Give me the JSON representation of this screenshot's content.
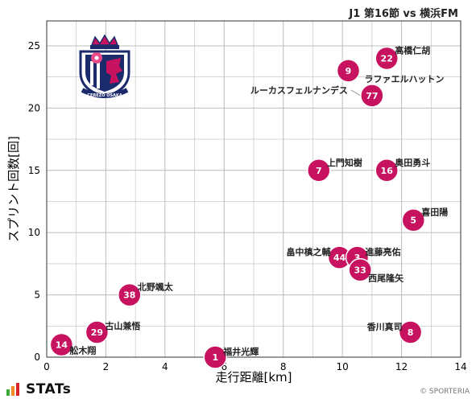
{
  "header": {
    "title": "J1 第16節 vs 横浜FM"
  },
  "footer": {
    "brand": "STATs",
    "copyright": "© SPORTERIA"
  },
  "team": {
    "crest_icon": "cerezo-osaka-crest",
    "crest_text": "CEREZO OSAKA"
  },
  "colors": {
    "marker": "#c6125f",
    "marker_edge": "#ffffff",
    "grid": "#bdbdbd",
    "stats_green": "#3aaa35",
    "stats_orange": "#f28c28",
    "stats_red": "#d9252a"
  },
  "chart_data": {
    "type": "scatter",
    "xlabel": "走行距離[km]",
    "ylabel": "スプリント回数[回]",
    "xlim": [
      0,
      14
    ],
    "ylim": [
      0,
      27
    ],
    "xticks": [
      0,
      2,
      4,
      6,
      8,
      10,
      12,
      14
    ],
    "yticks": [
      0,
      5,
      10,
      15,
      20,
      25
    ],
    "grid": true,
    "points": [
      {
        "number": "22",
        "name": "高橋仁胡",
        "x": 11.5,
        "y": 24
      },
      {
        "number": "9",
        "name": "ラファエルハットン",
        "x": 10.2,
        "y": 23
      },
      {
        "number": "77",
        "name": "ルーカスフェルナンデス",
        "x": 11.0,
        "y": 21
      },
      {
        "number": "7",
        "name": "上門知樹",
        "x": 9.2,
        "y": 15
      },
      {
        "number": "16",
        "name": "奥田勇斗",
        "x": 11.5,
        "y": 15
      },
      {
        "number": "5",
        "name": "喜田陽",
        "x": 12.4,
        "y": 11
      },
      {
        "number": "44",
        "name": "畠中槙之輔",
        "x": 9.9,
        "y": 8
      },
      {
        "number": "3",
        "name": "進藤亮佑",
        "x": 10.5,
        "y": 8
      },
      {
        "number": "33",
        "name": "西尾隆矢",
        "x": 10.6,
        "y": 7
      },
      {
        "number": "38",
        "name": "北野颯太",
        "x": 2.8,
        "y": 5
      },
      {
        "number": "29",
        "name": "古山兼悟",
        "x": 1.7,
        "y": 2
      },
      {
        "number": "8",
        "name": "香川真司",
        "x": 12.3,
        "y": 2
      },
      {
        "number": "14",
        "name": "舩木翔",
        "x": 0.5,
        "y": 1
      },
      {
        "number": "1",
        "name": "福井光輝",
        "x": 5.7,
        "y": 0
      }
    ]
  }
}
